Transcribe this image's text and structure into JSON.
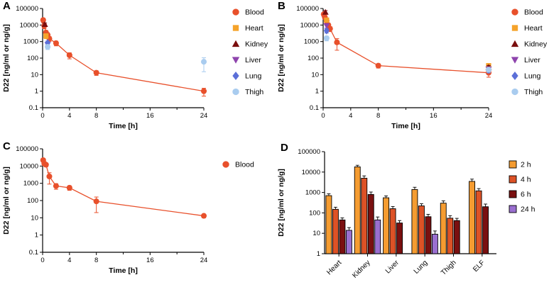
{
  "figure": {
    "background": "#ffffff"
  },
  "chart_data": [
    {
      "panel": "A",
      "type": "line",
      "xlabel": "Time  [h]",
      "ylabel": "D22 [ng/ml or ng/g]",
      "xlim": [
        0,
        24
      ],
      "xticks": [
        0,
        4,
        8,
        16,
        24
      ],
      "xticks_minor": [
        12,
        20
      ],
      "ylog": true,
      "ylim": [
        0.1,
        100000
      ],
      "yticks": [
        100000,
        10000,
        1000,
        100,
        10,
        1,
        0.1
      ],
      "legend_position": "right",
      "series": [
        {
          "name": "Blood",
          "marker": "circle",
          "color": "#E8502B",
          "line": true,
          "x": [
            0.083,
            0.25,
            0.5,
            0.75,
            1,
            2,
            4,
            8,
            24
          ],
          "y": [
            20000,
            9000,
            3500,
            2500,
            1500,
            800,
            150,
            13,
            1
          ],
          "err": [
            6000,
            3000,
            1200,
            900,
            500,
            250,
            60,
            4,
            0.5
          ]
        },
        {
          "name": "Heart",
          "marker": "square",
          "color": "#F5A32B",
          "line": false,
          "x": [
            0.5
          ],
          "y": [
            2200
          ],
          "err": [
            700
          ]
        },
        {
          "name": "Kidney",
          "marker": "triangle-up",
          "color": "#7A0E0E",
          "line": false,
          "x": [
            0.33
          ],
          "y": [
            11000
          ],
          "err": [
            2500
          ]
        },
        {
          "name": "Liver",
          "marker": "triangle-down",
          "color": "#8E44AD",
          "line": false,
          "x": [
            0.75
          ],
          "y": [
            650
          ],
          "err": [
            180
          ]
        },
        {
          "name": "Lung",
          "marker": "diamond",
          "color": "#5B6FD8",
          "line": false,
          "x": [
            0.75
          ],
          "y": [
            850
          ],
          "err": [
            220
          ]
        },
        {
          "name": "Thigh",
          "marker": "circle",
          "color": "#A9CCEF",
          "line": false,
          "x": [
            0.75,
            24
          ],
          "y": [
            480,
            60
          ],
          "err": [
            150,
            45
          ]
        }
      ],
      "legend": [
        "Blood",
        "Heart",
        "Kidney",
        "Liver",
        "Lung",
        "Thigh"
      ]
    },
    {
      "panel": "B",
      "type": "line",
      "xlabel": "Time  [h]",
      "ylabel": "D22 [ng/ml or ng/g]",
      "xlim": [
        0,
        24
      ],
      "xticks": [
        0,
        4,
        8,
        16,
        24
      ],
      "xticks_minor": [
        12,
        20
      ],
      "ylog": true,
      "ylim": [
        0.1,
        100000
      ],
      "yticks": [
        100000,
        10000,
        1000,
        100,
        10,
        1,
        0.1
      ],
      "legend_position": "right",
      "series": [
        {
          "name": "Blood",
          "marker": "circle",
          "color": "#E8502B",
          "line": true,
          "x": [
            0.083,
            0.25,
            0.5,
            0.75,
            1,
            2,
            8,
            24
          ],
          "y": [
            45000,
            30000,
            18000,
            10000,
            6000,
            900,
            35,
            13
          ],
          "err": [
            12000,
            8000,
            5000,
            3000,
            2000,
            600,
            10,
            6
          ]
        },
        {
          "name": "Heart",
          "marker": "square",
          "color": "#F5A32B",
          "line": false,
          "x": [
            0.5,
            24
          ],
          "y": [
            20000,
            35
          ],
          "err": [
            5000,
            12
          ]
        },
        {
          "name": "Kidney",
          "marker": "triangle-up",
          "color": "#7A0E0E",
          "line": false,
          "x": [
            0.33,
            24
          ],
          "y": [
            60000,
            28
          ],
          "err": [
            15000,
            8
          ]
        },
        {
          "name": "Liver",
          "marker": "triangle-down",
          "color": "#8E44AD",
          "line": false,
          "x": [
            0.5,
            24
          ],
          "y": [
            9000,
            22
          ],
          "err": [
            2500,
            6
          ]
        },
        {
          "name": "Lung",
          "marker": "diamond",
          "color": "#5B6FD8",
          "line": false,
          "x": [
            0.5,
            24
          ],
          "y": [
            4500,
            18
          ],
          "err": [
            1200,
            5
          ]
        },
        {
          "name": "Thigh",
          "marker": "circle",
          "color": "#A9CCEF",
          "line": false,
          "x": [
            0.5,
            24
          ],
          "y": [
            1600,
            20
          ],
          "err": [
            500,
            6
          ]
        }
      ],
      "legend": [
        "Blood",
        "Heart",
        "Kidney",
        "Liver",
        "Lung",
        "Thigh"
      ]
    },
    {
      "panel": "C",
      "type": "line",
      "xlabel": "Time  [h]",
      "ylabel": "D22 [ng/ml or ng/g]",
      "xlim": [
        0,
        24
      ],
      "xticks": [
        0,
        4,
        8,
        16,
        24
      ],
      "xticks_minor": [
        12,
        20
      ],
      "ylog": true,
      "ylim": [
        0.1,
        100000
      ],
      "yticks": [
        100000,
        10000,
        1000,
        100,
        10,
        1,
        0.1
      ],
      "legend_position": "right",
      "series": [
        {
          "name": "Blood",
          "marker": "circle",
          "color": "#E8502B",
          "line": true,
          "x": [
            0.083,
            0.25,
            0.5,
            1,
            2,
            4,
            8,
            24
          ],
          "y": [
            22000,
            14000,
            12000,
            2500,
            700,
            550,
            90,
            13
          ],
          "err": [
            5000,
            3500,
            3000,
            1600,
            250,
            160,
            70,
            3
          ]
        }
      ],
      "legend": [
        "Blood"
      ]
    },
    {
      "panel": "D",
      "type": "bar",
      "xlabel": "",
      "ylabel": "D22 [ng/ml or ng/g]",
      "ylog": true,
      "ylim": [
        1,
        100000
      ],
      "yticks": [
        100000,
        10000,
        1000,
        100,
        10,
        1
      ],
      "legend_position": "right",
      "categories": [
        "Heart",
        "Kidney",
        "Liver",
        "Lung",
        "Thigh",
        "ELF"
      ],
      "series": [
        {
          "name": "2 h",
          "color": "#F59C31",
          "values": [
            700,
            18000,
            550,
            1400,
            300,
            3500
          ],
          "err": [
            160,
            3500,
            130,
            400,
            90,
            1000
          ]
        },
        {
          "name": "4 h",
          "color": "#DD5226",
          "values": [
            150,
            5000,
            160,
            220,
            55,
            1200
          ],
          "err": [
            40,
            1500,
            45,
            60,
            18,
            350
          ]
        },
        {
          "name": "6 h",
          "color": "#7A1010",
          "values": [
            45,
            800,
            32,
            65,
            42,
            200
          ],
          "err": [
            12,
            250,
            10,
            20,
            12,
            70
          ]
        },
        {
          "name": "24 h",
          "color": "#9A6FD0",
          "values": [
            14,
            45,
            null,
            9,
            null,
            null
          ],
          "err": [
            5,
            18,
            null,
            4,
            null,
            null
          ]
        }
      ],
      "legend": [
        "2 h",
        "4 h",
        "6 h",
        "24 h"
      ]
    }
  ]
}
